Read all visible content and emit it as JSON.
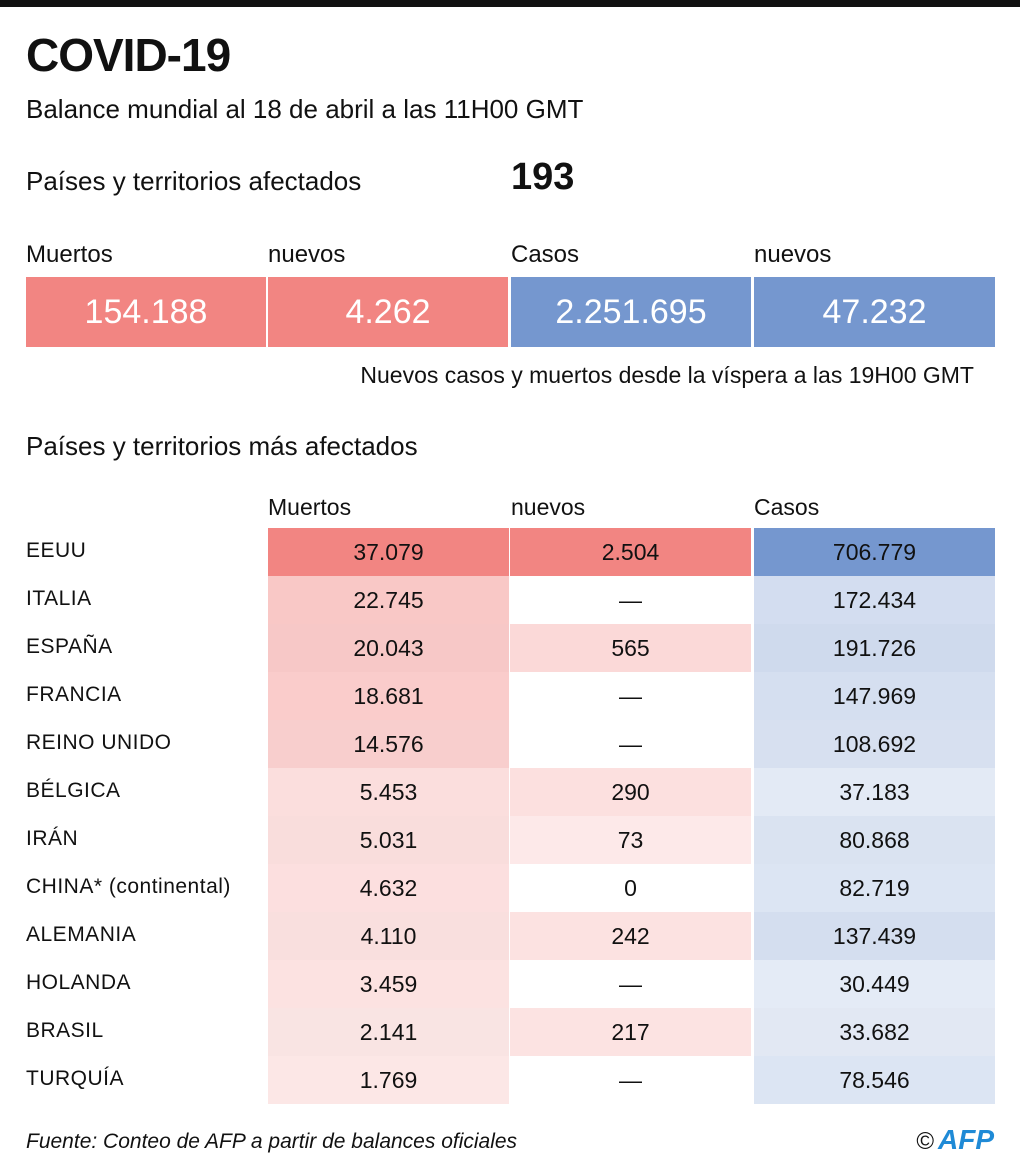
{
  "title": "COVID-19",
  "subtitle": "Balance mundial al 18 de abril a las 11H00 GMT",
  "affected": {
    "label": "Países y territorios afectados",
    "value": "193"
  },
  "summary": {
    "deaths_label": "Muertos",
    "deaths": "154.188",
    "new_deaths_label": "nuevos",
    "new_deaths": "4.262",
    "cases_label": "Casos",
    "cases": "2.251.695",
    "new_cases_label": "nuevos",
    "new_cases": "47.232"
  },
  "note": "Nuevos casos y muertos desde la víspera a las 19H00 GMT",
  "most_affected_title": "Países y territorios más afectados",
  "colors": {
    "deaths": "#f28582",
    "cases": "#7597cf"
  },
  "chart_data": {
    "type": "table",
    "columns": [
      "Muertos",
      "nuevos",
      "Casos"
    ],
    "rows": [
      {
        "country": "EEUU",
        "deaths": "37.079",
        "new": "2.504",
        "cases": "706.779"
      },
      {
        "country": "ITALIA",
        "deaths": "22.745",
        "new": "—",
        "cases": "172.434"
      },
      {
        "country": "ESPAÑA",
        "deaths": "20.043",
        "new": "565",
        "cases": "191.726"
      },
      {
        "country": "FRANCIA",
        "deaths": "18.681",
        "new": "—",
        "cases": "147.969"
      },
      {
        "country": "REINO UNIDO",
        "deaths": "14.576",
        "new": "—",
        "cases": "108.692"
      },
      {
        "country": "BÉLGICA",
        "deaths": "5.453",
        "new": "290",
        "cases": "37.183"
      },
      {
        "country": "IRÁN",
        "deaths": "5.031",
        "new": "73",
        "cases": "80.868"
      },
      {
        "country": "CHINA* (continental)",
        "deaths": "4.632",
        "new": "0",
        "cases": "82.719"
      },
      {
        "country": "ALEMANIA",
        "deaths": "4.110",
        "new": "242",
        "cases": "137.439"
      },
      {
        "country": "HOLANDA",
        "deaths": "3.459",
        "new": "—",
        "cases": "30.449"
      },
      {
        "country": "BRASIL",
        "deaths": "2.141",
        "new": "217",
        "cases": "33.682"
      },
      {
        "country": "TURQUÍA",
        "deaths": "1.769",
        "new": "—",
        "cases": "78.546"
      }
    ]
  },
  "source": "Fuente: Conteo de AFP a partir de balances oficiales",
  "logo": "AFP"
}
